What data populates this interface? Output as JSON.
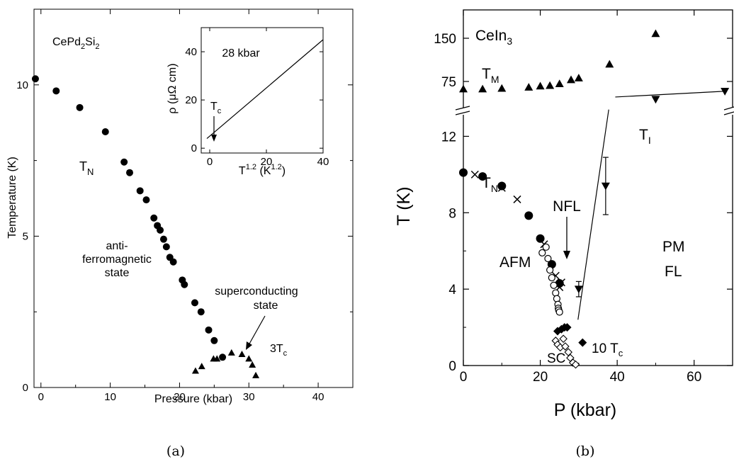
{
  "captions": {
    "a": "(a)",
    "b": "(b)"
  },
  "chart_data": [
    {
      "type": "scatter",
      "panel": "a",
      "xlabel": "Pressure (kbar)",
      "ylabel": "Temperature (K)",
      "xlim": [
        -1,
        45
      ],
      "ylim": [
        0,
        12.5
      ],
      "x_ticks": [
        0,
        10,
        20,
        30,
        40
      ],
      "y_ticks": [
        0,
        5,
        10
      ],
      "compound": {
        "base": "CePd",
        "sub1": "2",
        "mid": "Si",
        "sub2": "2"
      },
      "labels": {
        "tn": {
          "main": "T",
          "sub": "N"
        },
        "afm": [
          "anti-",
          "ferromagnetic",
          "state"
        ],
        "sc": [
          "superconducting",
          "state"
        ],
        "tc3": {
          "main": "3T",
          "sub": "c"
        }
      },
      "series": [
        {
          "marker": "circle",
          "x": [
            -0.8,
            2.2,
            5.6,
            9.3,
            12.0,
            12.8,
            14.3,
            15.2,
            16.3,
            16.8,
            17.2,
            17.7,
            18.1,
            18.6,
            19.1,
            20.4,
            20.7,
            22.2,
            23.1,
            24.2,
            25.0,
            26.2
          ],
          "y": [
            10.2,
            9.8,
            9.25,
            8.45,
            7.45,
            7.1,
            6.5,
            6.2,
            5.6,
            5.35,
            5.2,
            4.9,
            4.65,
            4.3,
            4.15,
            3.55,
            3.4,
            2.8,
            2.5,
            1.9,
            1.55,
            1.0
          ]
        },
        {
          "name": "3T_c",
          "marker": "triangle",
          "x": [
            22.3,
            23.2,
            24.9,
            25.4,
            27.5,
            29.0,
            30.0,
            30.5,
            31.0
          ],
          "y": [
            0.55,
            0.7,
            0.95,
            0.95,
            1.15,
            1.1,
            0.95,
            0.75,
            0.4
          ]
        }
      ],
      "inset": {
        "type": "line",
        "title": "28 kbar",
        "xlabel": {
          "main": "T",
          "sup": "1.2",
          "unit_open": " (K",
          "unit_sup": "1.2",
          "unit_close": ")"
        },
        "ylabel": {
          "main": "ρ (μΩ cm)"
        },
        "tc_label": {
          "main": "T",
          "sub": "c"
        },
        "xlim": [
          -3,
          40
        ],
        "ylim": [
          -2,
          50
        ],
        "x_ticks": [
          0,
          20,
          40
        ],
        "y_ticks": [
          0,
          20,
          40
        ],
        "x": [
          -1,
          40
        ],
        "y": [
          4,
          45
        ]
      }
    },
    {
      "type": "scatter",
      "panel": "b",
      "xlabel": "P (kbar)",
      "ylabel": "T (K)",
      "xlim": [
        0,
        70
      ],
      "ylim_lower": [
        0,
        13.5
      ],
      "ylim_upper_ticks": [
        75,
        150
      ],
      "x_ticks": [
        0,
        20,
        40,
        60
      ],
      "y_ticks_lower": [
        0,
        4,
        8,
        12
      ],
      "y_ticks_upper": [
        75,
        150
      ],
      "compound": {
        "base": "CeIn",
        "sub1": "3"
      },
      "labels": {
        "tm": {
          "main": "T",
          "sub": "M"
        },
        "tn": {
          "main": "T",
          "sub": "N"
        },
        "tl": {
          "main": "T",
          "sub": "I"
        },
        "nfl": "NFL",
        "afm": "AFM",
        "pm": "PM",
        "fl": "FL",
        "sc": "SC",
        "tc10": {
          "main": "10 T",
          "sub": "c"
        }
      },
      "series": [
        {
          "name": "T_M",
          "marker": "triangle-up",
          "x": [
            0,
            5,
            10,
            17,
            20,
            22.5,
            25,
            28,
            30,
            38,
            50
          ],
          "y": [
            62,
            62,
            63,
            65,
            67,
            68,
            71,
            78,
            81,
            105,
            158
          ]
        },
        {
          "name": "T_I",
          "marker": "triangle-down",
          "x": [
            50,
            68
          ],
          "y": [
            44,
            58
          ]
        },
        {
          "marker": "circle",
          "x": [
            0,
            5,
            10,
            17,
            20,
            23,
            25
          ],
          "y": [
            10.1,
            9.9,
            9.4,
            7.85,
            6.65,
            5.3,
            4.3
          ]
        },
        {
          "marker": "cross",
          "x": [
            3,
            10,
            14,
            21,
            24,
            25.5,
            25
          ],
          "y": [
            10,
            9.3,
            8.7,
            6.35,
            4.7,
            4.35,
            4.1
          ]
        },
        {
          "marker": "open-circle",
          "x": [
            20.5,
            21.5,
            22.0,
            22.5,
            23.0,
            23.5,
            24.0,
            24.3,
            24.6,
            24.7,
            24.8,
            25.0
          ],
          "y": [
            5.9,
            6.2,
            5.6,
            5.0,
            4.6,
            4.2,
            3.8,
            3.5,
            3.2,
            3.0,
            2.9,
            2.8
          ]
        },
        {
          "marker": "diamond",
          "x": [
            24.5,
            25.5,
            26.3,
            27.0,
            31.0
          ],
          "y": [
            1.8,
            1.9,
            2.0,
            2.0,
            1.2
          ]
        },
        {
          "marker": "open-diamond",
          "x": [
            24.0,
            24.5,
            25.2,
            26.0,
            26.5,
            27.3,
            27.8,
            28.5,
            29.2
          ],
          "y": [
            1.3,
            1.1,
            0.95,
            1.4,
            1.0,
            0.7,
            0.4,
            0.15,
            0.05
          ]
        },
        {
          "marker": "triangle-down-err",
          "x": [
            30,
            37
          ],
          "y": [
            4.0,
            9.4
          ],
          "err": [
            0.4,
            1.5
          ]
        }
      ],
      "lines": [
        {
          "x": [
            29.8,
            37.8
          ],
          "y": [
            2.4,
            13.4
          ]
        },
        {
          "x": [
            39.5,
            68
          ],
          "y": [
            48,
            58
          ],
          "region": "upper"
        }
      ],
      "arrow_label": "NFL"
    }
  ]
}
